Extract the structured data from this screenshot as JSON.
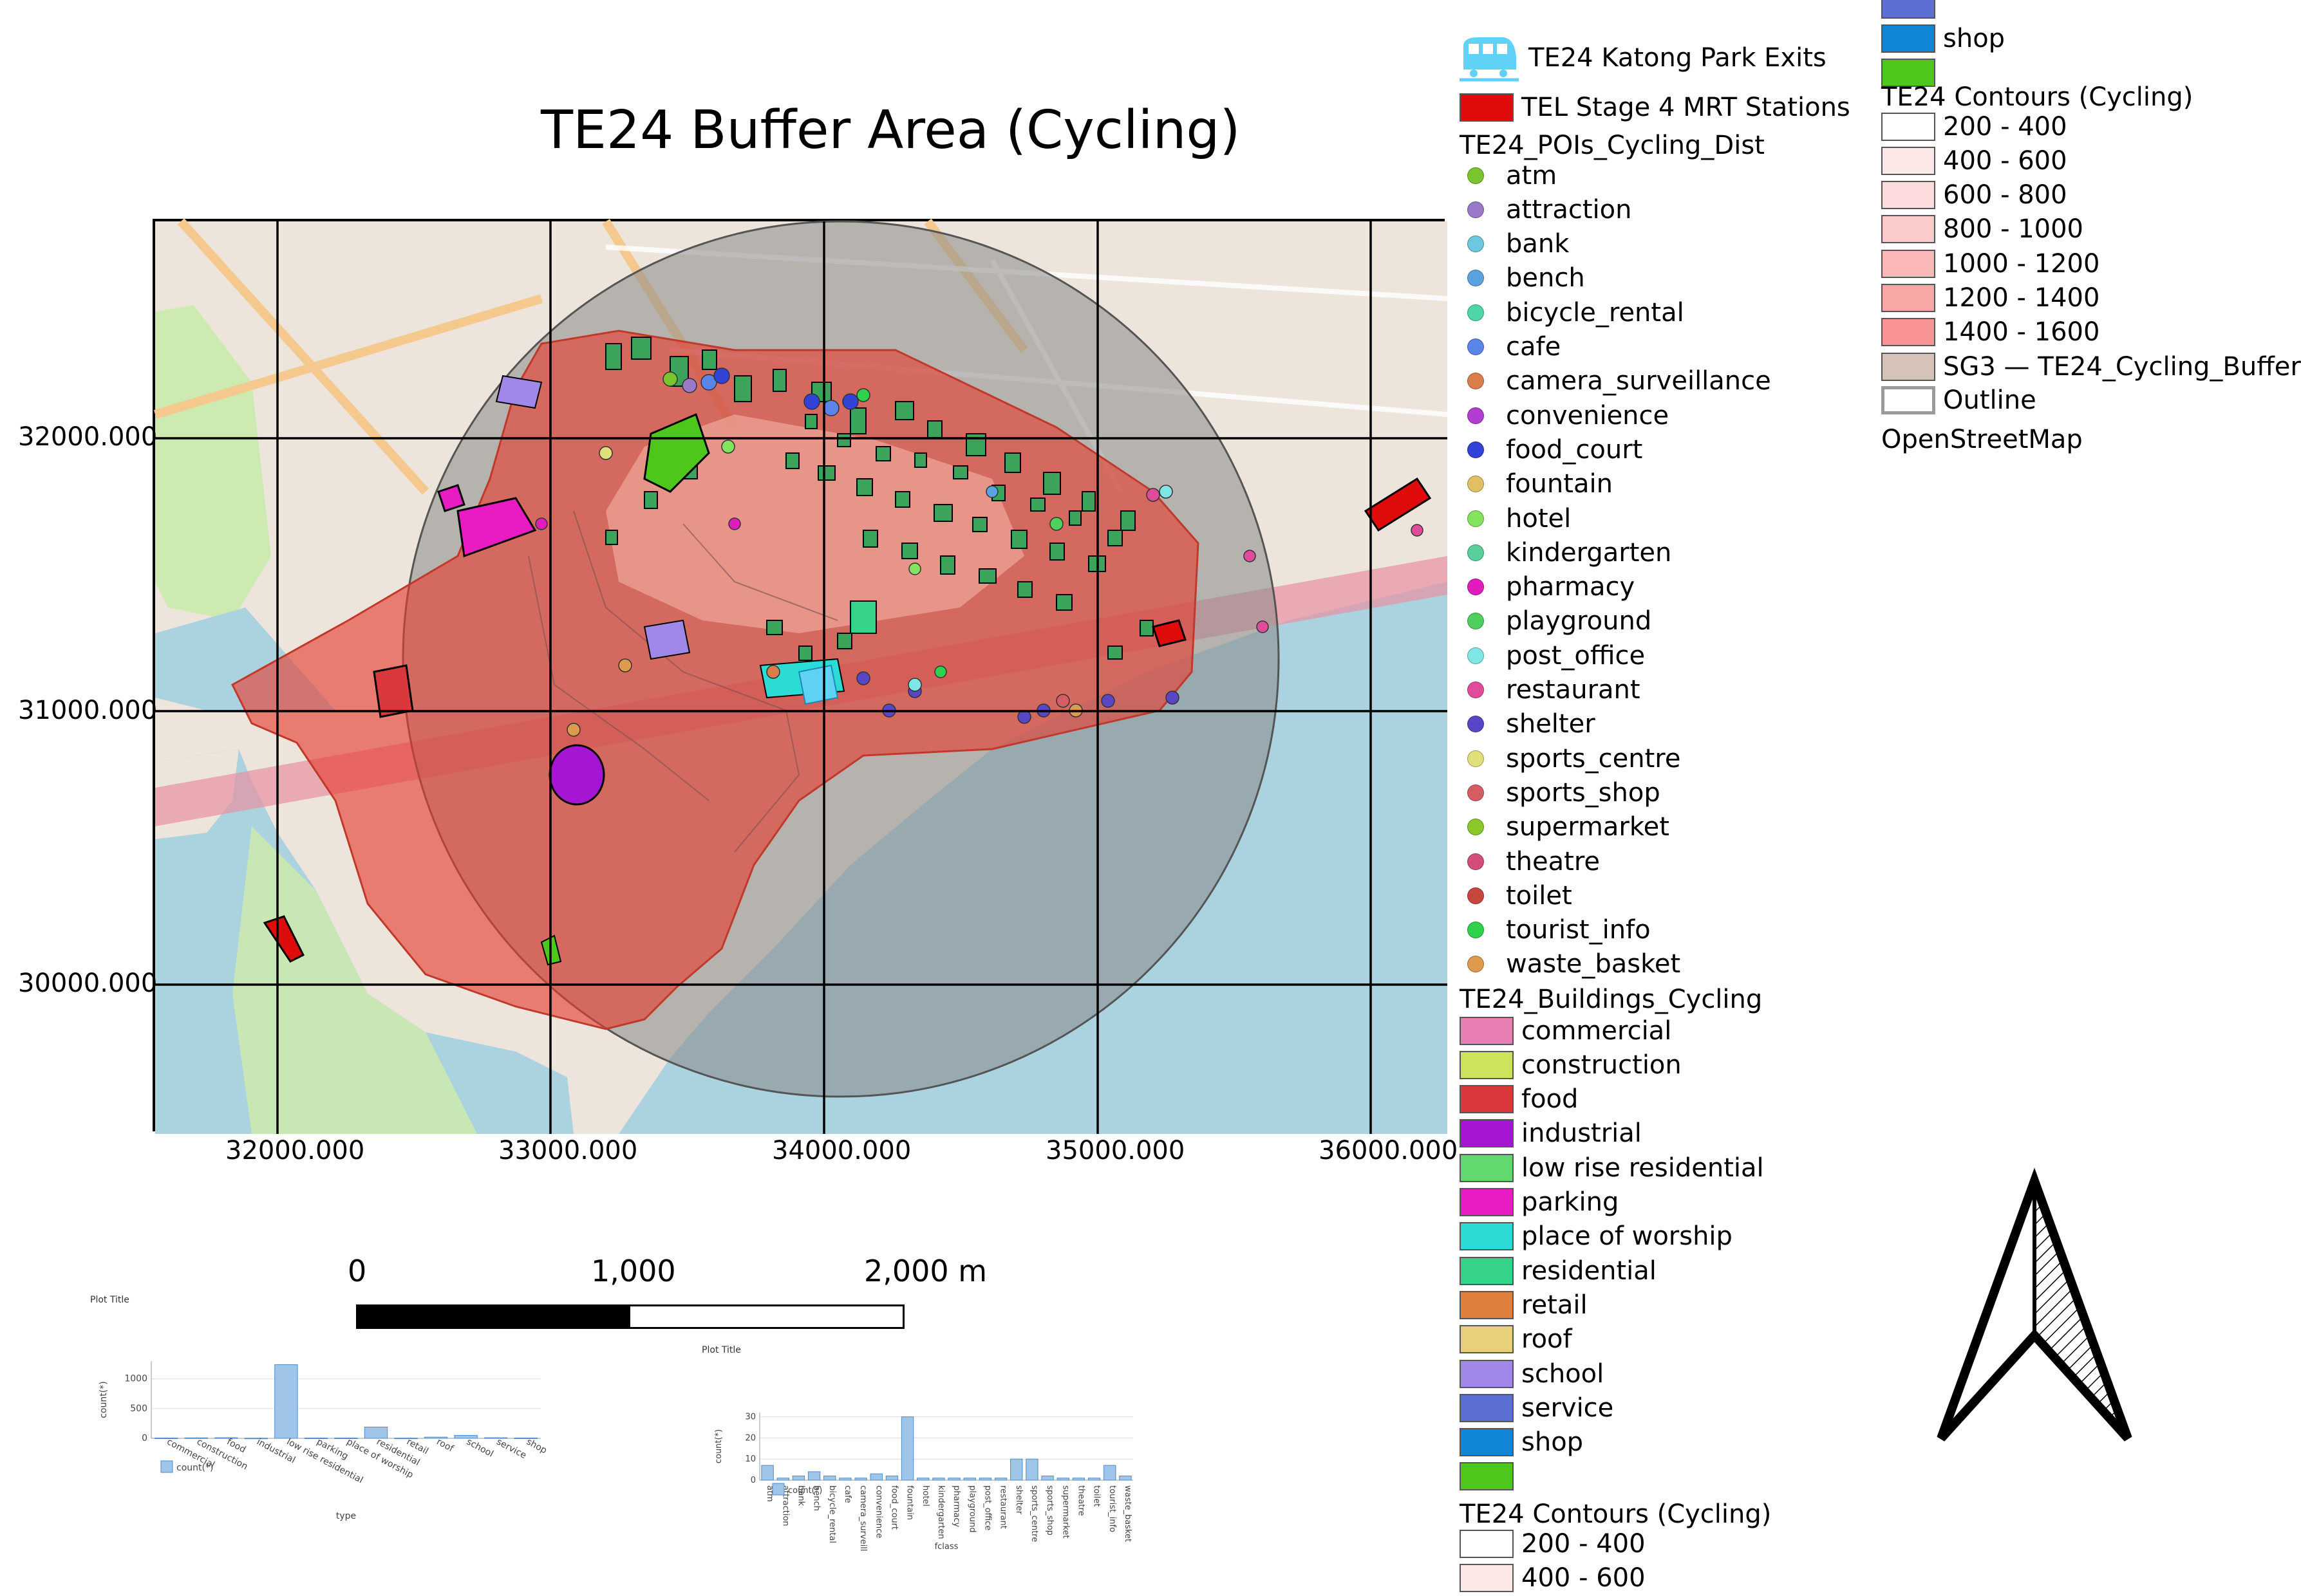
{
  "title": "TE24 Buffer Area (Cycling)",
  "coords": {
    "y_labels": [
      "32000.000",
      "31000.000",
      "30000.000"
    ],
    "x_labels": [
      "32000.000",
      "33000.000",
      "34000.000",
      "35000.000",
      "36000.000"
    ]
  },
  "scale_bar": {
    "labels": [
      "0",
      "1,000",
      "2,000 m"
    ]
  },
  "legend_top": {
    "exits_label": "TE24 Katong Park Exits",
    "stations_label": "TEL Stage 4 MRT Stations",
    "pois_title": "TE24_POIs_Cycling_Dist",
    "pois": [
      {
        "label": "atm",
        "color": "#7ac42e"
      },
      {
        "label": "attraction",
        "color": "#9b79c9"
      },
      {
        "label": "bank",
        "color": "#6cc7e0"
      },
      {
        "label": "bench",
        "color": "#5aa3e0"
      },
      {
        "label": "bicycle_rental",
        "color": "#4fd6a8"
      },
      {
        "label": "cafe",
        "color": "#5b84e8"
      },
      {
        "label": "camera_surveillance",
        "color": "#d97d4a"
      },
      {
        "label": "convenience",
        "color": "#b13ed1"
      },
      {
        "label": "food_court",
        "color": "#3142d6"
      },
      {
        "label": "fountain",
        "color": "#e2bf63"
      },
      {
        "label": "hotel",
        "color": "#84e35d"
      },
      {
        "label": "kindergarten",
        "color": "#58cf9b"
      },
      {
        "label": "pharmacy",
        "color": "#e01cbd"
      },
      {
        "label": "playground",
        "color": "#4fcf5d"
      },
      {
        "label": "post_office",
        "color": "#7fe6e6"
      },
      {
        "label": "restaurant",
        "color": "#e04b9b"
      },
      {
        "label": "shelter",
        "color": "#5747c7"
      },
      {
        "label": "sports_centre",
        "color": "#e0e07a"
      },
      {
        "label": "sports_shop",
        "color": "#d65d63"
      },
      {
        "label": "supermarket",
        "color": "#8cc72a"
      },
      {
        "label": "theatre",
        "color": "#d44d7a"
      },
      {
        "label": "toilet",
        "color": "#c7473e"
      },
      {
        "label": "tourist_info",
        "color": "#2fd14a"
      },
      {
        "label": "waste_basket",
        "color": "#de9a4d"
      }
    ],
    "buildings_title": "TE24_Buildings_Cycling",
    "buildings": [
      {
        "label": "commercial",
        "color": "#e87fb4"
      },
      {
        "label": "construction",
        "color": "#cde35e"
      },
      {
        "label": "food",
        "color": "#d9383d"
      },
      {
        "label": "industrial",
        "color": "#a614d4"
      },
      {
        "label": "low rise residential",
        "color": "#62d96f"
      },
      {
        "label": "parking",
        "color": "#e81cc2"
      },
      {
        "label": "place of worship",
        "color": "#2cdbd4"
      },
      {
        "label": "residential",
        "color": "#35d48a"
      },
      {
        "label": "retail",
        "color": "#e07e3e"
      },
      {
        "label": "roof",
        "color": "#e8d07a"
      },
      {
        "label": "school",
        "color": "#a087e8"
      },
      {
        "label": "service",
        "color": "#5b6fd4"
      },
      {
        "label": "shop",
        "color": "#1286d6"
      },
      {
        "label": "",
        "color": "#4ec71c"
      }
    ],
    "contours_title": "TE24 Contours (Cycling)",
    "contours": [
      {
        "label": "200 - 400",
        "color": "#ffffff"
      },
      {
        "label": "400 - 600",
        "color": "#fde8e8"
      }
    ]
  },
  "legend_right": {
    "top_swatches": [
      {
        "label": "",
        "color": "#5b6fd4"
      },
      {
        "label": "shop",
        "color": "#1286d6"
      },
      {
        "label": "",
        "color": "#4ec71c"
      }
    ],
    "contours_title": "TE24 Contours (Cycling)",
    "contours": [
      {
        "label": "200 - 400",
        "color": "#ffffff"
      },
      {
        "label": "400 - 600",
        "color": "#fde8e8"
      },
      {
        "label": "600 - 800",
        "color": "#fcdcdc"
      },
      {
        "label": "800 - 1000",
        "color": "#fbcaca"
      },
      {
        "label": "1000 - 1200",
        "color": "#fab8b8"
      },
      {
        "label": "1200 - 1400",
        "color": "#f9a6a6"
      },
      {
        "label": "1400 - 1600",
        "color": "#f89494"
      },
      {
        "label": "SG3 — TE24_Cycling_Buffer",
        "color": "#d6c3b8"
      }
    ],
    "outline_label": "Outline",
    "basemap_label": "OpenStreetMap"
  },
  "chart_data": [
    {
      "type": "bar",
      "title": "Plot Title",
      "xlabel": "type",
      "ylabel": "count(*)",
      "categories": [
        "commercial",
        "construction",
        "food",
        "industrial",
        "low rise residential",
        "parking",
        "place of worship",
        "residential",
        "retail",
        "roof",
        "school",
        "service",
        "shop"
      ],
      "values": [
        5,
        8,
        10,
        3,
        1240,
        5,
        5,
        190,
        4,
        20,
        50,
        10,
        6
      ],
      "ylim": [
        0,
        1300
      ],
      "yticks": [
        "0",
        "500",
        "1000"
      ],
      "legend": "count(*)"
    },
    {
      "type": "bar",
      "title": "Plot Title",
      "xlabel": "fclass",
      "ylabel": "count(*)",
      "categories": [
        "atm",
        "attraction",
        "bank",
        "bench",
        "bicycle_rental",
        "cafe",
        "camera_surveill",
        "convenience",
        "food_court",
        "fountain",
        "hotel",
        "kindergarten",
        "pharmacy",
        "playground",
        "post_office",
        "restaurant",
        "shelter",
        "sports_centre",
        "sports_shop",
        "supermarket",
        "theatre",
        "toilet",
        "tourist_info",
        "waste_basket"
      ],
      "values": [
        7,
        1,
        2,
        4,
        2,
        1,
        1,
        3,
        2,
        30,
        1,
        1,
        1,
        1,
        1,
        1,
        10,
        10,
        2,
        1,
        1,
        1,
        7,
        2
      ],
      "ylim": [
        0,
        32
      ],
      "yticks": [
        "0",
        "10",
        "20",
        "30"
      ],
      "legend": "count(*)"
    }
  ]
}
